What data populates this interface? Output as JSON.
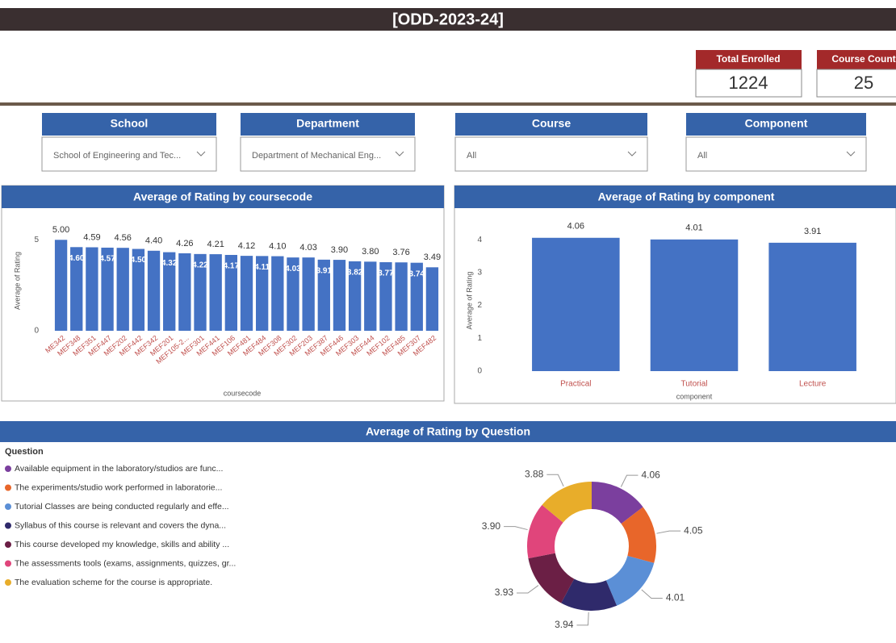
{
  "header": {
    "title": "[ODD-2023-24]"
  },
  "kpis": [
    {
      "label": "Total Enrolled",
      "value": "1224"
    },
    {
      "label": "Course Count",
      "value": "25"
    }
  ],
  "filters": [
    {
      "label": "School",
      "value": "School of Engineering and Tec..."
    },
    {
      "label": "Department",
      "value": "Department of Mechanical Eng..."
    },
    {
      "label": "Course",
      "value": "All"
    },
    {
      "label": "Component",
      "value": "All"
    }
  ],
  "chart_data": [
    {
      "type": "bar",
      "title": "Average of Rating by coursecode",
      "x_label": "coursecode",
      "y_label": "Average of Rating",
      "categories": [
        "ME342",
        "MEF348",
        "MEF351",
        "MEF447",
        "MEF202",
        "MEF442",
        "MEF342",
        "MEF201",
        "MEF105-2...",
        "MEF301",
        "MEF441",
        "MEF106",
        "MEF481",
        "MEF484",
        "MEF308",
        "MEF302",
        "MEF203",
        "MEF387",
        "MEF446",
        "MEF303",
        "MEF444",
        "MEF102",
        "MEF485",
        "MEF307",
        "MEF482"
      ],
      "values": [
        5,
        4.6,
        4.59,
        4.57,
        4.56,
        4.5,
        4.4,
        4.32,
        4.26,
        4.22,
        4.21,
        4.17,
        4.12,
        4.11,
        4.1,
        4.03,
        4.03,
        3.91,
        3.9,
        3.82,
        3.8,
        3.77,
        3.76,
        3.74,
        3.49
      ],
      "value_labels": [
        "5.00",
        "4.60",
        "4.59",
        "4.57",
        "4.56",
        "4.50",
        "4.40",
        "4.32",
        "4.26",
        "4.22",
        "4.21",
        "4.17",
        "4.12",
        "4.11",
        "4.10",
        "4.03",
        "4.03",
        "3.91",
        "3.90",
        "3.82",
        "3.80",
        "3.77",
        "3.76",
        "3.74",
        "3.49"
      ],
      "color": "#4472c4",
      "ylim": [
        0,
        5.5
      ],
      "yticks": [
        0,
        5
      ]
    },
    {
      "type": "bar",
      "title": "Average of Rating by component",
      "x_label": "component",
      "y_label": "Average of Rating",
      "categories": [
        "Practical",
        "Tutorial",
        "Lecture"
      ],
      "values": [
        4.06,
        4.01,
        3.91
      ],
      "color": "#4472c4",
      "ylim": [
        0,
        4.3
      ],
      "yticks": [
        0,
        1,
        2,
        3,
        4
      ]
    },
    {
      "type": "pie",
      "donut": true,
      "title": "Average of Rating by Question",
      "legend_title": "Question",
      "categories": [
        "Available equipment in the laboratory/studios are func...",
        "The experiments/studio work performed in laboratorie...",
        "Tutorial Classes are being conducted regularly and effe...",
        "Syllabus of this course is relevant and covers the dyna...",
        "This course developed my knowledge, skills and ability ...",
        "The assessments tools (exams, assignments, quizzes, gr...",
        "The evaluation scheme for the course is appropriate."
      ],
      "values": [
        4.06,
        4.05,
        4.01,
        3.94,
        3.93,
        3.9,
        3.88
      ],
      "value_labels": [
        "4.06",
        "4.05",
        "4.01",
        "3.94",
        "3.93",
        "3.90",
        "3.88"
      ],
      "colors": [
        "#7b3f9e",
        "#e8662a",
        "#5b8fd6",
        "#2f2a6b",
        "#6b1f45",
        "#e0457b",
        "#e8ad2a"
      ]
    }
  ]
}
